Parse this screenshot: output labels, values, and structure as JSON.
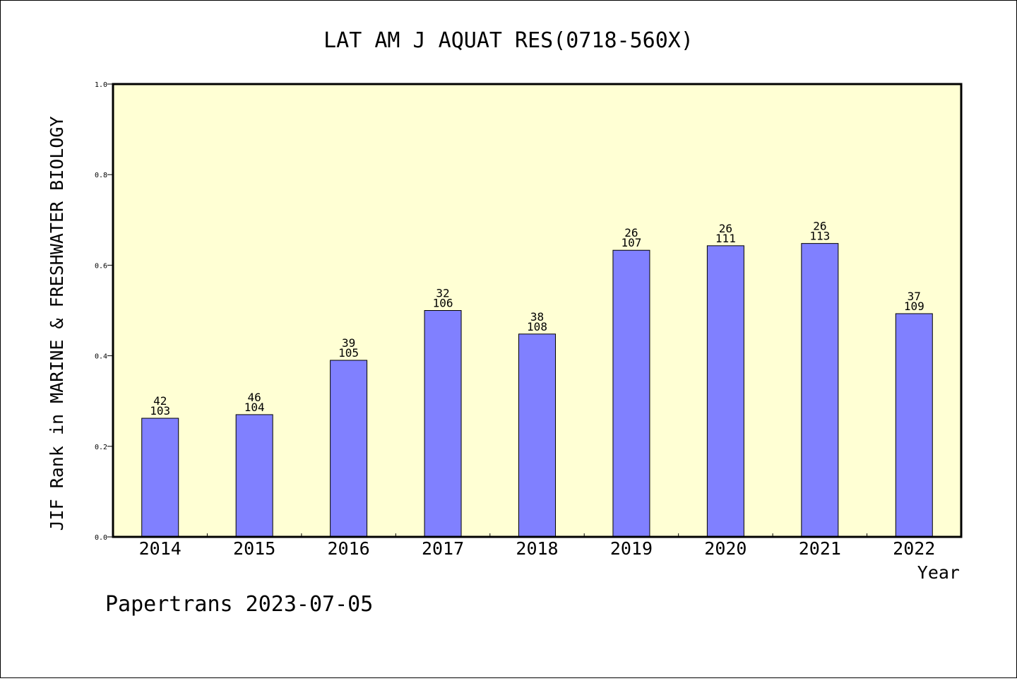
{
  "chart_data": {
    "type": "bar",
    "title": "LAT AM J AQUAT RES(0718-560X)",
    "xlabel": "Year",
    "ylabel": "JIF Rank in MARINE & FRESHWATER BIOLOGY",
    "ylim": [
      0,
      1.0
    ],
    "yticks": [
      "0.0",
      "0.2",
      "0.4",
      "0.6",
      "0.8",
      "1.0"
    ],
    "categories": [
      "2014",
      "2015",
      "2016",
      "2017",
      "2018",
      "2019",
      "2020",
      "2021",
      "2022"
    ],
    "values": [
      0.262,
      0.27,
      0.39,
      0.5,
      0.448,
      0.633,
      0.643,
      0.648,
      0.493
    ],
    "rank": [
      "42",
      "46",
      "39",
      "32",
      "38",
      "26",
      "26",
      "26",
      "37"
    ],
    "total": [
      "103",
      "104",
      "105",
      "106",
      "108",
      "107",
      "111",
      "113",
      "109"
    ],
    "grid": false,
    "colors": {
      "bar": "#8080ff",
      "plot_background": "#ffffd4"
    }
  },
  "footer": "Papertrans 2023-07-05"
}
